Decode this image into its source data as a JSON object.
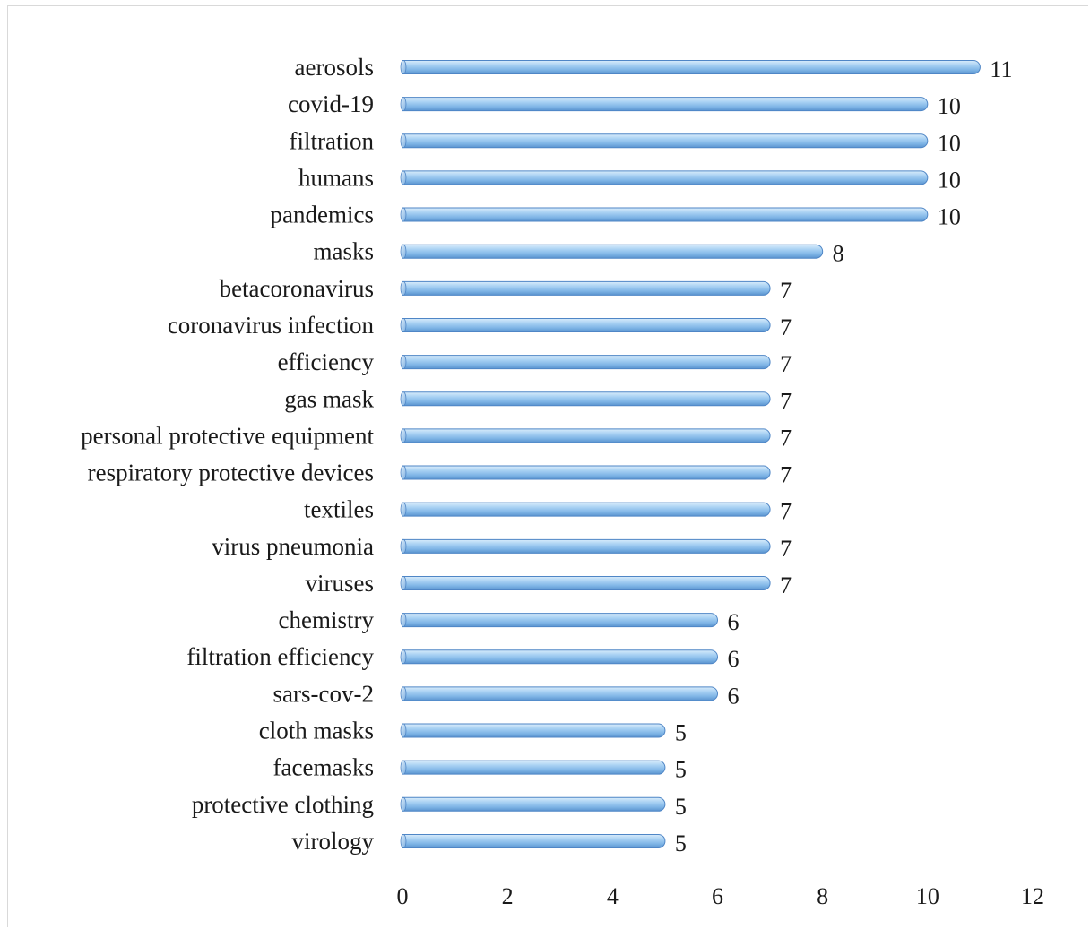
{
  "chart_data": {
    "type": "bar",
    "orientation": "horizontal",
    "categories": [
      "aerosols",
      "covid-19",
      "filtration",
      "humans",
      "pandemics",
      "masks",
      "betacoronavirus",
      "coronavirus infection",
      "efficiency",
      "gas mask",
      "personal protective equipment",
      "respiratory protective devices",
      "textiles",
      "virus pneumonia",
      "viruses",
      "chemistry",
      "filtration efficiency",
      "sars-cov-2",
      "cloth masks",
      "facemasks",
      "protective clothing",
      "virology"
    ],
    "values": [
      11,
      10,
      10,
      10,
      10,
      8,
      7,
      7,
      7,
      7,
      7,
      7,
      7,
      7,
      7,
      6,
      6,
      6,
      5,
      5,
      5,
      5
    ],
    "xlim": [
      0,
      12
    ],
    "xticks": [
      "0",
      "2",
      "4",
      "6",
      "8",
      "10",
      "12"
    ],
    "grid": false,
    "legend": "none",
    "bar_color": "#8ec1ec",
    "bar_edge_color": "#4f86c6"
  }
}
